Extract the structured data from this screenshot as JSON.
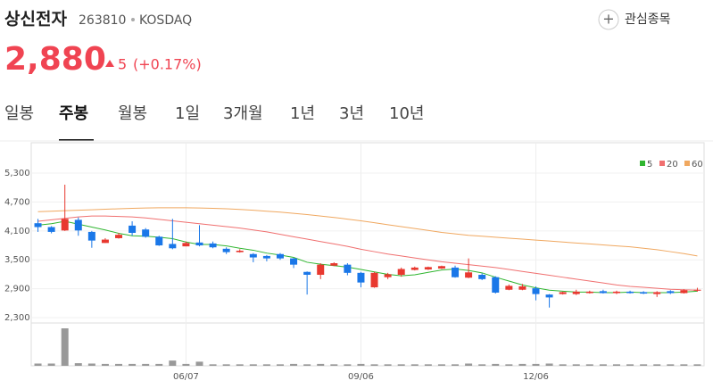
{
  "header": {
    "name": "상신전자",
    "code": "263810",
    "market": "KOSDAQ",
    "price": "2,880",
    "change": "5",
    "change_pct": "(+0.17%)",
    "watch": "관심종목"
  },
  "tabs": {
    "items": [
      "일봉",
      "주봉",
      "월봉",
      "1일",
      "3개월",
      "1년",
      "3년",
      "10년"
    ],
    "active": 1
  },
  "chart_data": {
    "type": "candlestick",
    "categories": [
      null,
      null,
      null,
      null,
      null,
      null,
      null,
      null,
      null,
      null,
      null,
      "06/07",
      null,
      null,
      null,
      null,
      null,
      null,
      null,
      null,
      null,
      null,
      null,
      null,
      "09/06",
      null,
      null,
      null,
      null,
      null,
      null,
      null,
      null,
      null,
      null,
      null,
      null,
      "12/06",
      null,
      null,
      null,
      null,
      null,
      null,
      null,
      null,
      null,
      null,
      null,
      null
    ],
    "open": [
      4260,
      4180,
      4110,
      4330,
      4080,
      3850,
      3950,
      4210,
      4130,
      3980,
      3830,
      3780,
      3860,
      3840,
      3730,
      3660,
      3620,
      3580,
      3620,
      3530,
      3250,
      3190,
      3380,
      3400,
      3230,
      2930,
      3140,
      3190,
      3290,
      3300,
      3320,
      3340,
      3130,
      3190,
      3140,
      2880,
      2880,
      2910,
      2780,
      2790,
      2790,
      2810,
      2850,
      2810,
      2840,
      2830,
      2790,
      2850,
      2810,
      2860
    ],
    "high": [
      4350,
      4200,
      5060,
      4380,
      4100,
      3950,
      4060,
      4300,
      4160,
      4000,
      4350,
      3880,
      4220,
      3880,
      3760,
      3720,
      3640,
      3600,
      3640,
      3540,
      3260,
      3430,
      3450,
      3430,
      3250,
      3250,
      3230,
      3340,
      3360,
      3360,
      3380,
      3380,
      3530,
      3220,
      3160,
      2990,
      3000,
      2950,
      2790,
      2840,
      2880,
      2860,
      2880,
      2860,
      2860,
      2850,
      2850,
      2870,
      2890,
      2920
    ],
    "low": [
      4080,
      4050,
      4100,
      4000,
      3750,
      3850,
      3940,
      4000,
      3960,
      3790,
      3720,
      3780,
      3780,
      3740,
      3620,
      3650,
      3450,
      3470,
      3500,
      3330,
      2780,
      3100,
      3370,
      3180,
      2930,
      2920,
      3100,
      3150,
      3280,
      3290,
      3310,
      3130,
      3120,
      3080,
      2800,
      2870,
      2870,
      2660,
      2510,
      2780,
      2770,
      2800,
      2800,
      2790,
      2800,
      2790,
      2730,
      2790,
      2800,
      2840
    ],
    "close": [
      4180,
      4080,
      4350,
      4110,
      3900,
      3920,
      4020,
      4060,
      3980,
      3800,
      3740,
      3850,
      3800,
      3760,
      3660,
      3690,
      3550,
      3530,
      3530,
      3400,
      3190,
      3400,
      3430,
      3230,
      3030,
      3230,
      3200,
      3310,
      3340,
      3350,
      3370,
      3140,
      3240,
      3100,
      2820,
      2960,
      2950,
      2790,
      2720,
      2830,
      2840,
      2840,
      2810,
      2840,
      2810,
      2800,
      2830,
      2810,
      2870,
      2880
    ],
    "up_color": "#e8382f",
    "down_color": "#1a77e8",
    "series": [
      {
        "name": "5",
        "color": "#2fb52f",
        "values": [
          4220,
          4250,
          4300,
          4240,
          4180,
          4120,
          4050,
          4000,
          3990,
          3970,
          3940,
          3870,
          3820,
          3820,
          3790,
          3740,
          3700,
          3640,
          3600,
          3550,
          3450,
          3410,
          3380,
          3350,
          3300,
          3250,
          3200,
          3170,
          3190,
          3240,
          3290,
          3310,
          3280,
          3230,
          3140,
          3060,
          2980,
          2920,
          2870,
          2850,
          2830,
          2830,
          2820,
          2820,
          2830,
          2820,
          2820,
          2820,
          2830,
          2850
        ]
      },
      {
        "name": "20",
        "color": "#f07070",
        "values": [
          4300,
          4330,
          4360,
          4390,
          4410,
          4410,
          4400,
          4390,
          4370,
          4340,
          4310,
          4280,
          4250,
          4220,
          4190,
          4160,
          4120,
          4080,
          4030,
          3980,
          3930,
          3880,
          3830,
          3780,
          3720,
          3670,
          3620,
          3580,
          3540,
          3500,
          3460,
          3430,
          3400,
          3370,
          3340,
          3300,
          3260,
          3220,
          3180,
          3140,
          3100,
          3060,
          3020,
          2980,
          2950,
          2930,
          2910,
          2890,
          2880,
          2870
        ]
      },
      {
        "name": "60",
        "color": "#f0a860",
        "values": [
          4500,
          4510,
          4520,
          4530,
          4540,
          4550,
          4560,
          4570,
          4575,
          4580,
          4580,
          4580,
          4575,
          4570,
          4560,
          4545,
          4530,
          4510,
          4490,
          4465,
          4440,
          4410,
          4380,
          4345,
          4310,
          4270,
          4230,
          4190,
          4150,
          4110,
          4070,
          4040,
          4010,
          3990,
          3970,
          3950,
          3930,
          3910,
          3890,
          3870,
          3850,
          3830,
          3810,
          3790,
          3770,
          3740,
          3710,
          3670,
          3630,
          3580
        ]
      }
    ],
    "volume": {
      "color": "#999999",
      "values": [
        6,
        6,
        100,
        7,
        6,
        5,
        5,
        5,
        5,
        5,
        14,
        5,
        11,
        4,
        4,
        4,
        4,
        4,
        4,
        5,
        4,
        5,
        4,
        4,
        5,
        4,
        4,
        4,
        4,
        4,
        4,
        4,
        6,
        4,
        5,
        4,
        5,
        5,
        6,
        4,
        4,
        4,
        4,
        4,
        4,
        4,
        4,
        4,
        4,
        4
      ]
    },
    "ylim": [
      2190,
      5930
    ],
    "yticks": [
      {
        "value": 5300,
        "label": "5,300"
      },
      {
        "value": 4700,
        "label": "4,700"
      },
      {
        "value": 4100,
        "label": "4,100"
      },
      {
        "value": 3500,
        "label": "3,500"
      },
      {
        "value": 2900,
        "label": "2,900"
      },
      {
        "value": 2300,
        "label": "2,300"
      }
    ]
  }
}
